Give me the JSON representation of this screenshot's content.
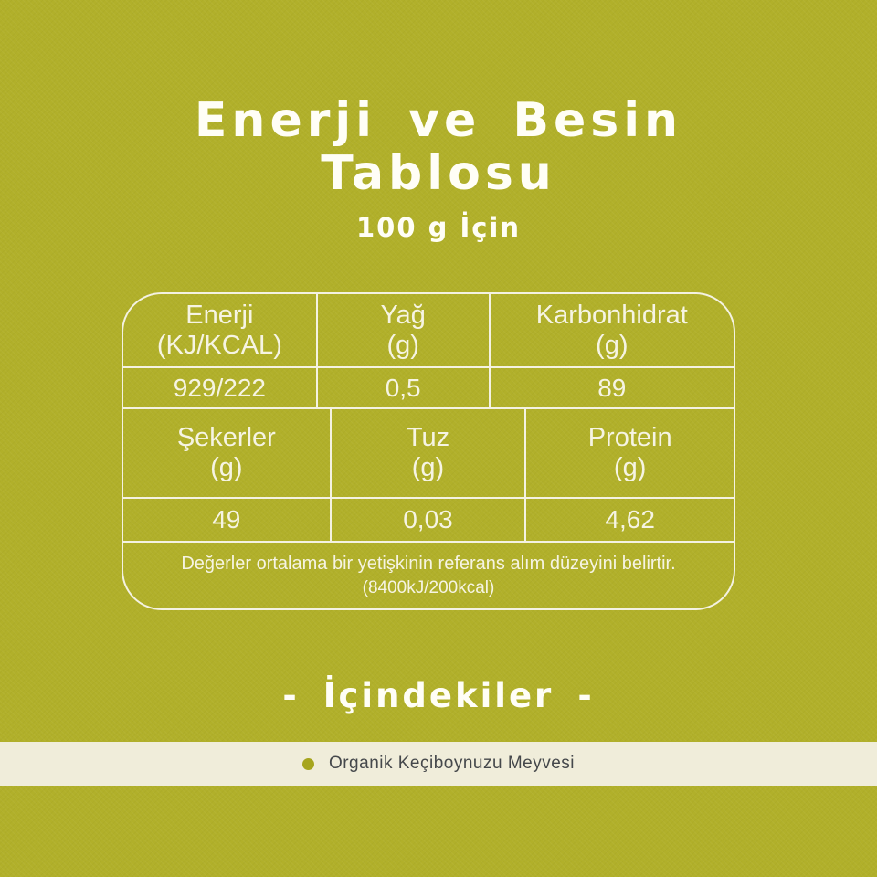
{
  "theme": {
    "background": "#b1b02a",
    "cream_bar": "#f0edda",
    "table_line": "#f4f2e2",
    "table_text": "#f6f4e3",
    "title_text": "#fffef6",
    "ingredient_text": "#45484b",
    "bullet_color": "#a6a51d"
  },
  "header": {
    "title_line1": "Enerji ve Besin",
    "title_line2": "Tablosu",
    "subtitle": "100 g İçin"
  },
  "nutrition_table": {
    "section1": {
      "headers": [
        {
          "name": "Enerji",
          "unit": "(KJ/KCAL)"
        },
        {
          "name": "Yağ",
          "unit": "(g)"
        },
        {
          "name": "Karbonhidrat",
          "unit": "(g)"
        }
      ],
      "values": [
        "929/222",
        "0,5",
        "89"
      ]
    },
    "section2": {
      "headers": [
        {
          "name": "Şekerler",
          "unit": "(g)"
        },
        {
          "name": "Tuz",
          "unit": "(g)"
        },
        {
          "name": "Protein",
          "unit": "(g)"
        }
      ],
      "values": [
        "49",
        "0,03",
        "4,62"
      ]
    },
    "note_line1": "Değerler ortalama bir yetişkinin referans alım düzeyini belirtir.",
    "note_line2": "(8400kJ/200kcal)"
  },
  "ingredients": {
    "dash_left": "-",
    "heading": "İçindekiler",
    "dash_right": "-",
    "item": "Organik Keçiboynuzu Meyvesi"
  }
}
